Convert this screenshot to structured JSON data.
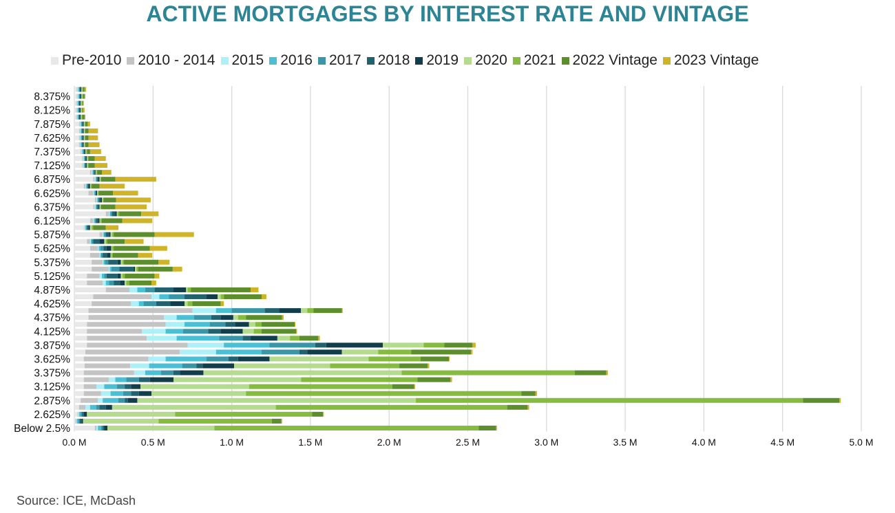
{
  "title": "ACTIVE MORTGAGES BY INTEREST RATE AND VINTAGE",
  "source": "Source: ICE, McDash",
  "colors": {
    "title": "#2d8494",
    "grid": "#d9d9d9"
  },
  "chart_data": {
    "type": "bar",
    "orientation": "horizontal",
    "stacked": true,
    "title": "ACTIVE MORTGAGES BY INTEREST RATE AND VINTAGE",
    "xlim": [
      0,
      5000000
    ],
    "x_ticks": [
      0,
      500000,
      1000000,
      1500000,
      2000000,
      2500000,
      3000000,
      3500000,
      4000000,
      4500000,
      5000000
    ],
    "x_tick_labels": [
      "0.0 M",
      "0.5 M",
      "1.0 M",
      "1.5 M",
      "2.0 M",
      "2.5 M",
      "3.0 M",
      "3.5 M",
      "4.0 M",
      "4.5 M",
      "5.0 M"
    ],
    "grid": "vertical",
    "legend_position": "top",
    "categories": [
      "Below 2.5%",
      "2.5%",
      "2.625%",
      "2.75%",
      "2.875%",
      "3%",
      "3.125%",
      "3.25%",
      "3.375%",
      "3.5%",
      "3.625%",
      "3.75%",
      "3.875%",
      "4%",
      "4.125%",
      "4.25%",
      "4.375%",
      "4.5%",
      "4.625%",
      "4.75%",
      "4.875%",
      "5%",
      "5.125%",
      "5.25%",
      "5.375%",
      "5.5%",
      "5.625%",
      "5.75%",
      "5.875%",
      "6%",
      "6.125%",
      "6.25%",
      "6.375%",
      "6.5%",
      "6.625%",
      "6.75%",
      "6.875%",
      "7%",
      "7.125%",
      "7.25%",
      "7.375%",
      "7.5%",
      "7.625%",
      "7.75%",
      "7.875%",
      "8%",
      "8.125%",
      "8.25%",
      "8.375%",
      "8.5%"
    ],
    "visible_category_labels": [
      "Below 2.5%",
      "2.625%",
      "2.875%",
      "3.125%",
      "3.375%",
      "3.625%",
      "3.875%",
      "4.125%",
      "4.375%",
      "4.625%",
      "4.875%",
      "5.125%",
      "5.375%",
      "5.625%",
      "5.875%",
      "6.125%",
      "6.375%",
      "6.625%",
      "6.875%",
      "7.125%",
      "7.375%",
      "7.625%",
      "7.875%",
      "8.125%",
      "8.375%"
    ],
    "series": [
      {
        "name": "Pre-2010",
        "color": "#e8e8e8",
        "values": [
          130000,
          5000,
          20000,
          30000,
          40000,
          60000,
          60000,
          60000,
          60000,
          65000,
          60000,
          70000,
          80000,
          80000,
          80000,
          80000,
          90000,
          90000,
          110000,
          120000,
          200000,
          80000,
          80000,
          110000,
          110000,
          100000,
          100000,
          80000,
          160000,
          60000,
          100000,
          200000,
          120000,
          130000,
          90000,
          60000,
          120000,
          100000,
          50000,
          50000,
          40000,
          30000,
          30000,
          30000,
          30000,
          10000,
          10000,
          10000,
          15000,
          15000
        ]
      },
      {
        "name": "2010 - 2014",
        "color": "#c4c4c4",
        "values": [
          10000,
          5000,
          5000,
          40000,
          110000,
          110000,
          80000,
          160000,
          320000,
          290000,
          410000,
          600000,
          640000,
          380000,
          350000,
          500000,
          480000,
          660000,
          250000,
          370000,
          150000,
          100000,
          80000,
          110000,
          70000,
          60000,
          50000,
          20000,
          20000,
          5000,
          20000,
          20000,
          10000,
          10000,
          30000,
          10000,
          10000,
          10000,
          5000,
          5000,
          5000,
          5000,
          5000,
          5000,
          5000,
          5000,
          5000,
          5000,
          5000,
          5000
        ]
      },
      {
        "name": "2015",
        "color": "#aef0f8",
        "values": [
          10000,
          5000,
          5000,
          30000,
          30000,
          60000,
          50000,
          40000,
          70000,
          120000,
          110000,
          230000,
          230000,
          190000,
          150000,
          120000,
          80000,
          150000,
          50000,
          50000,
          50000,
          20000,
          15000,
          5000,
          5000,
          5000,
          5000,
          5000,
          5000,
          5000,
          5000,
          5000,
          5000,
          5000,
          5000,
          5000,
          5000,
          5000,
          5000,
          5000,
          5000,
          5000,
          5000,
          5000,
          5000,
          5000,
          5000,
          5000,
          5000,
          5000
        ]
      },
      {
        "name": "2016",
        "color": "#4bbfd4",
        "values": [
          20000,
          10000,
          10000,
          40000,
          100000,
          80000,
          80000,
          70000,
          100000,
          210000,
          260000,
          290000,
          290000,
          270000,
          110000,
          160000,
          110000,
          100000,
          30000,
          60000,
          50000,
          20000,
          15000,
          10000,
          10000,
          5000,
          10000,
          5000,
          5000,
          5000,
          5000,
          5000,
          5000,
          5000,
          5000,
          5000,
          5000,
          5000,
          5000,
          5000,
          5000,
          5000,
          5000,
          5000,
          5000,
          5000,
          5000,
          5000,
          5000,
          5000
        ]
      },
      {
        "name": "2017",
        "color": "#3a96a6",
        "values": [
          10000,
          10000,
          10000,
          20000,
          40000,
          50000,
          50000,
          80000,
          80000,
          90000,
          140000,
          240000,
          290000,
          150000,
          160000,
          100000,
          110000,
          210000,
          80000,
          100000,
          60000,
          30000,
          15000,
          50000,
          20000,
          10000,
          20000,
          10000,
          10000,
          5000,
          10000,
          10000,
          5000,
          5000,
          5000,
          5000,
          5000,
          5000,
          5000,
          5000,
          5000,
          5000,
          5000,
          5000,
          5000,
          5000,
          5000,
          5000,
          5000,
          5000
        ]
      },
      {
        "name": "2018",
        "color": "#22616e",
        "values": [
          10000,
          10000,
          10000,
          40000,
          20000,
          50000,
          40000,
          70000,
          40000,
          40000,
          60000,
          50000,
          70000,
          50000,
          80000,
          60000,
          60000,
          90000,
          90000,
          140000,
          120000,
          40000,
          70000,
          90000,
          60000,
          30000,
          20000,
          40000,
          20000,
          10000,
          10000,
          20000,
          10000,
          10000,
          5000,
          5000,
          5000,
          5000,
          5000,
          5000,
          5000,
          5000,
          5000,
          5000,
          5000,
          5000,
          5000,
          5000,
          5000,
          5000
        ]
      },
      {
        "name": "2019",
        "color": "#123e4c",
        "values": [
          20000,
          10000,
          20000,
          40000,
          60000,
          80000,
          60000,
          150000,
          150000,
          200000,
          200000,
          220000,
          360000,
          170000,
          140000,
          90000,
          80000,
          140000,
          90000,
          70000,
          80000,
          30000,
          20000,
          10000,
          20000,
          20000,
          30000,
          30000,
          10000,
          10000,
          10000,
          10000,
          5000,
          10000,
          5000,
          10000,
          10000,
          5000,
          5000,
          5000,
          5000,
          5000,
          5000,
          5000,
          5000,
          5000,
          5000,
          5000,
          5000,
          5000
        ]
      },
      {
        "name": "2020",
        "color": "#b4db8e",
        "values": [
          680000,
          480000,
          560000,
          1040000,
          1770000,
          600000,
          690000,
          810000,
          1260000,
          610000,
          630000,
          230000,
          260000,
          80000,
          70000,
          40000,
          30000,
          40000,
          20000,
          20000,
          10000,
          10000,
          10000,
          10000,
          10000,
          5000,
          5000,
          10000,
          10000,
          10000,
          5000,
          5000,
          5000,
          5000,
          5000,
          5000,
          5000,
          5000,
          5000,
          5000,
          5000,
          5000,
          5000,
          5000,
          5000,
          5000,
          5000,
          5000,
          5000,
          5000
        ]
      },
      {
        "name": "2021",
        "color": "#85bb3f",
        "values": [
          1680000,
          720000,
          870000,
          1470000,
          2460000,
          1750000,
          910000,
          740000,
          1100000,
          440000,
          330000,
          210000,
          130000,
          60000,
          50000,
          40000,
          50000,
          40000,
          30000,
          20000,
          20000,
          20000,
          15000,
          10000,
          10000,
          10000,
          10000,
          10000,
          10000,
          10000,
          10000,
          10000,
          5000,
          5000,
          5000,
          5000,
          5000,
          5000,
          5000,
          5000,
          5000,
          5000,
          5000,
          5000,
          5000,
          5000,
          5000,
          5000,
          5000,
          5000
        ]
      },
      {
        "name": "2022 Vintage",
        "color": "#5c8e2e",
        "values": [
          110000,
          60000,
          70000,
          130000,
          230000,
          90000,
          140000,
          210000,
          200000,
          180000,
          180000,
          380000,
          180000,
          120000,
          220000,
          210000,
          230000,
          180000,
          180000,
          240000,
          380000,
          140000,
          190000,
          220000,
          220000,
          160000,
          230000,
          110000,
          260000,
          80000,
          130000,
          140000,
          90000,
          80000,
          90000,
          50000,
          90000,
          30000,
          40000,
          40000,
          20000,
          20000,
          20000,
          20000,
          15000,
          15000,
          5000,
          5000,
          10000,
          10000
        ]
      },
      {
        "name": "2023 Vintage",
        "color": "#cfb42a",
        "values": [
          5000,
          5000,
          5000,
          10000,
          10000,
          10000,
          5000,
          10000,
          10000,
          10000,
          5000,
          10000,
          20000,
          10000,
          5000,
          5000,
          10000,
          5000,
          20000,
          30000,
          50000,
          30000,
          30000,
          60000,
          70000,
          90000,
          110000,
          120000,
          250000,
          80000,
          190000,
          110000,
          200000,
          220000,
          160000,
          160000,
          260000,
          60000,
          80000,
          70000,
          70000,
          70000,
          60000,
          60000,
          15000,
          5000,
          10000,
          5000,
          5000,
          10000
        ]
      }
    ]
  }
}
